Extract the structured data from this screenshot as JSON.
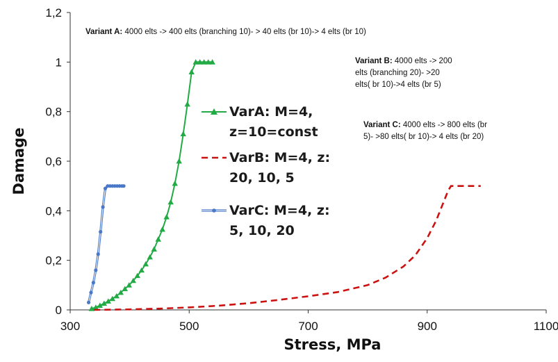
{
  "chart_data": {
    "type": "line",
    "xlabel": "Stress, MPa",
    "ylabel": "Damage",
    "xlim": [
      300,
      1100
    ],
    "ylim": [
      0,
      1.2
    ],
    "x_ticks": [
      "300",
      "500",
      "700",
      "900",
      "1100"
    ],
    "y_ticks": [
      "0",
      "0,2",
      "0,4",
      "0,6",
      "0,8",
      "1",
      "1,2"
    ],
    "grid": false,
    "legend_position": "center",
    "series": [
      {
        "name_line1": "VarA: M=4,",
        "name_line2": "z=10=const",
        "color": "#22aa44",
        "marker": "triangle",
        "x": [
          336,
          343,
          350,
          357,
          364,
          371,
          378,
          385,
          392,
          399,
          406,
          413,
          420,
          427,
          434,
          441,
          448,
          455,
          462,
          469,
          476,
          483,
          490,
          497,
          504,
          511,
          518,
          525,
          532,
          539
        ],
        "y": [
          0.005,
          0.01,
          0.018,
          0.026,
          0.035,
          0.045,
          0.056,
          0.07,
          0.085,
          0.1,
          0.118,
          0.138,
          0.16,
          0.185,
          0.213,
          0.245,
          0.285,
          0.325,
          0.375,
          0.435,
          0.51,
          0.6,
          0.71,
          0.83,
          0.96,
          1.0,
          1.0,
          1.0,
          1.0,
          1.0
        ]
      },
      {
        "name_line1": "VarB: M=4, z:",
        "name_line2": "20, 10, 5",
        "color": "#cc1111",
        "marker": "none",
        "dash": true,
        "x": [
          340,
          400,
          450,
          500,
          550,
          600,
          650,
          700,
          750,
          800,
          830,
          860,
          880,
          900,
          915,
          925,
          935,
          940,
          960,
          990
        ],
        "y": [
          0,
          0.002,
          0.005,
          0.01,
          0.017,
          0.027,
          0.04,
          0.055,
          0.072,
          0.1,
          0.13,
          0.175,
          0.22,
          0.29,
          0.36,
          0.42,
          0.48,
          0.5,
          0.5,
          0.5
        ]
      },
      {
        "name_line1": "VarC: M=4, z:",
        "name_line2": "5, 10, 20",
        "color": "#4a78c8",
        "marker": "circle",
        "x": [
          331,
          335,
          339,
          343,
          347,
          351,
          355,
          359,
          363,
          367,
          371,
          375,
          379,
          383,
          387,
          390
        ],
        "y": [
          0.03,
          0.07,
          0.11,
          0.16,
          0.225,
          0.315,
          0.415,
          0.49,
          0.5,
          0.5,
          0.5,
          0.5,
          0.5,
          0.5,
          0.5,
          0.5
        ]
      }
    ],
    "annotations": [
      {
        "label": "Variant A:",
        "text": "4000 elts -> 400 elts (branching  10)- > 40 elts (br 10)-> 4 elts (br  10)"
      },
      {
        "label": "Variant B:",
        "text_lines": [
          "4000 elts -> 200",
          "elts (branching  20)- >20",
          "elts( br 10)->4 elts (br 5)"
        ]
      },
      {
        "label": "Variant C:",
        "text_lines": [
          "4000 elts -> 800 elts (br",
          "5)- >80 elts( br 10)-> 4 elts (br 20)"
        ]
      }
    ]
  }
}
